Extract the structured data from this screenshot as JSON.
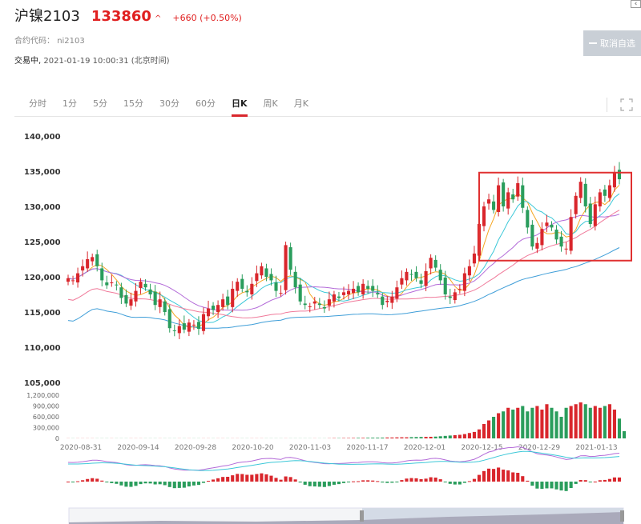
{
  "header": {
    "name": "沪镍2103",
    "price": "133860",
    "arrow": "^",
    "change": "+660 (+0.50%)",
    "code_label": "合约代码：",
    "code": "ni2103",
    "status": "交易中,",
    "datetime": "2021-01-19 10:00:31 (北京时间)",
    "cancel_label": "取消自选"
  },
  "tabs": [
    {
      "label": "分时",
      "active": false
    },
    {
      "label": "1分",
      "active": false
    },
    {
      "label": "5分",
      "active": false
    },
    {
      "label": "15分",
      "active": false
    },
    {
      "label": "30分",
      "active": false
    },
    {
      "label": "60分",
      "active": false
    },
    {
      "label": "日K",
      "active": true
    },
    {
      "label": "周K",
      "active": false
    },
    {
      "label": "月K",
      "active": false
    }
  ],
  "colors": {
    "up": "#d9262c",
    "down": "#2a9d5c",
    "ma5": "#f5a623",
    "ma10": "#3cc8d8",
    "ma20": "#b36ad8",
    "ma30": "#f07a9a",
    "ma60": "#3f9ed8",
    "highlight": "#e03030"
  },
  "chart_data": {
    "type": "candlestick",
    "price_axis": {
      "ticks": [
        "140,000",
        "135,000",
        "130,000",
        "125,000",
        "120,000",
        "115,000",
        "110,000",
        "105,000"
      ],
      "range": [
        105000,
        140000
      ]
    },
    "volume_axis": {
      "ticks": [
        "1,200,000",
        "900,000",
        "600,000",
        "300,000",
        "0"
      ],
      "range": [
        0,
        1200000
      ]
    },
    "date_ticks": [
      "2020-08-31",
      "2020-09-14",
      "2020-09-28",
      "2020-10-20",
      "2020-11-03",
      "2020-11-17",
      "2020-12-01",
      "2020-12-15",
      "2020-12-29",
      "2021-01-13"
    ],
    "closes": [
      119800,
      119500,
      120500,
      121500,
      122500,
      122800,
      121500,
      119500,
      118800,
      119200,
      118800,
      117000,
      116200,
      116800,
      118000,
      119300,
      118500,
      117500,
      116000,
      116800,
      115000,
      112700,
      112300,
      113000,
      112500,
      113500,
      113200,
      112600,
      114700,
      115500,
      115300,
      116000,
      116800,
      116000,
      118300,
      119300,
      118300,
      117800,
      119000,
      120500,
      121500,
      120000,
      119500,
      118000,
      117700,
      124500,
      121000,
      118500,
      116500,
      116000,
      115800,
      116500,
      116000,
      115500,
      116800,
      117500,
      117000,
      117800,
      118000,
      118300,
      117800,
      119000,
      118300,
      118000,
      117500,
      116000,
      116600,
      117200,
      118500,
      119800,
      120700,
      120300,
      119800,
      119000,
      120800,
      122700,
      121300,
      119500,
      117500,
      117000,
      117800,
      118300,
      120500,
      121500,
      123300,
      127500,
      130000,
      131000,
      129500,
      133000,
      130000,
      132000,
      131000,
      133300,
      129800,
      127000,
      124300,
      124800,
      126800,
      127700,
      127000,
      125300,
      124300,
      124000,
      128500,
      131500,
      133500,
      130000,
      127500,
      130300,
      132000,
      131500,
      133000,
      134800,
      133860
    ],
    "volumes": [
      3000,
      3000,
      3000,
      3000,
      3000,
      3000,
      3000,
      3000,
      3000,
      3000,
      3000,
      3000,
      3000,
      3000,
      3000,
      3000,
      3000,
      3000,
      3000,
      3000,
      3000,
      3000,
      3000,
      3000,
      3000,
      3000,
      3000,
      3000,
      3000,
      3000,
      3000,
      3000,
      3000,
      3000,
      3000,
      3000,
      3000,
      3000,
      3000,
      3000,
      3000,
      3000,
      3000,
      3000,
      3000,
      3000,
      3000,
      3000,
      3000,
      3000,
      3000,
      3000,
      3000,
      3000,
      5000,
      8000,
      8000,
      10000,
      10000,
      12000,
      15000,
      15000,
      18000,
      20000,
      20000,
      22000,
      25000,
      25000,
      28000,
      30000,
      30000,
      35000,
      38000,
      40000,
      42000,
      45000,
      50000,
      60000,
      70000,
      80000,
      90000,
      100000,
      120000,
      150000,
      180000,
      250000,
      400000,
      500000,
      600000,
      700000,
      750000,
      850000,
      800000,
      850000,
      900000,
      750000,
      850000,
      900000,
      800000,
      950000,
      850000,
      750000,
      600000,
      850000,
      900000,
      950000,
      1000000,
      950000,
      850000,
      900000,
      850000,
      900000,
      950000,
      800000,
      550000,
      200000
    ]
  }
}
